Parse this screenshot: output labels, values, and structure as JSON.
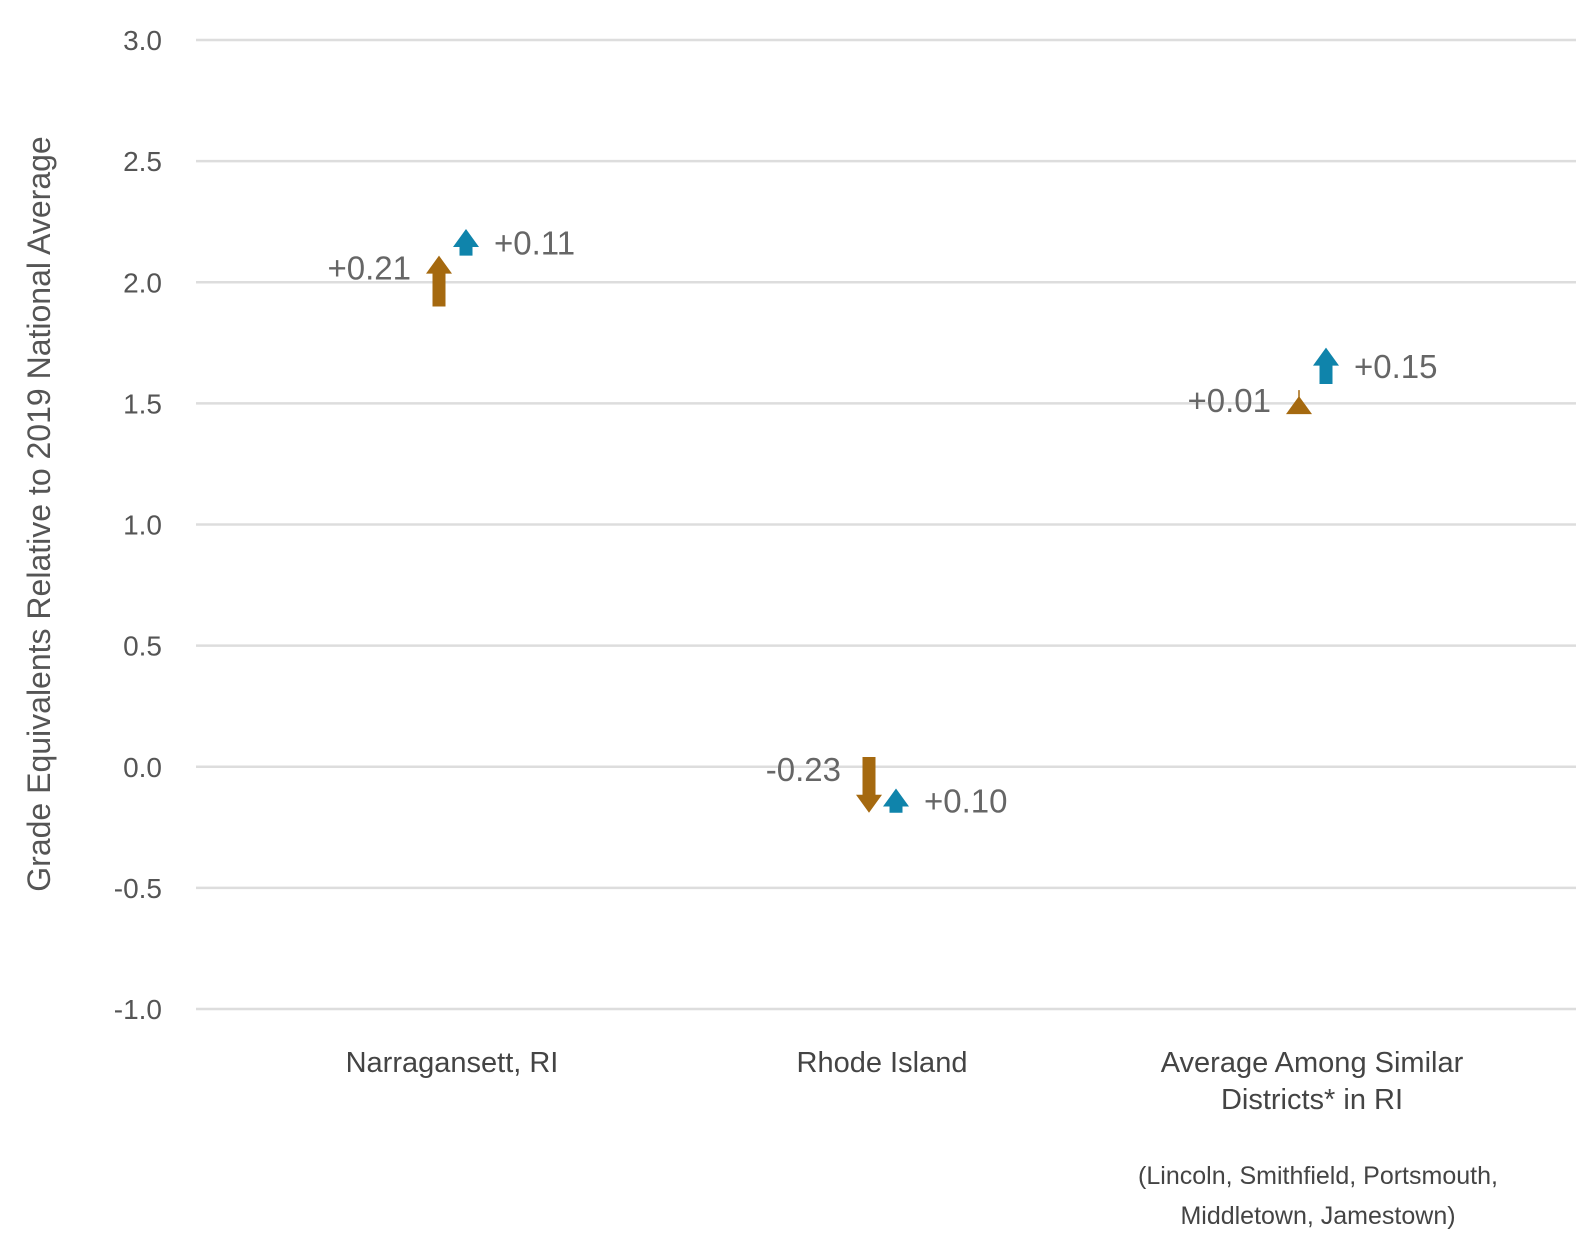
{
  "chart_data": {
    "type": "arrow",
    "ylabel": "Grade Equivalents Relative to 2019 National Average",
    "ylim": [
      -1.0,
      3.0
    ],
    "yticks": [
      3.0,
      2.5,
      2.0,
      1.5,
      1.0,
      0.5,
      0.0,
      -0.5,
      -1.0
    ],
    "ytick_labels": [
      "3.0",
      "2.5",
      "2.0",
      "1.5",
      "1.0",
      "0.5",
      "0.0",
      "-0.5",
      "-1.0"
    ],
    "grid": true,
    "categories": [
      {
        "lines": [
          "Narragansett, RI"
        ],
        "note": []
      },
      {
        "lines": [
          "Rhode Island"
        ],
        "note": []
      },
      {
        "lines": [
          "Average Among Similar",
          "Districts* in RI"
        ],
        "note": [
          "(Lincoln, Smithfield, Portsmouth,",
          "Middletown, Jamestown)"
        ]
      }
    ],
    "series": [
      {
        "color": "#a5690f",
        "points": [
          {
            "start": 1.9,
            "end": 2.11,
            "label": "+0.21"
          },
          {
            "start": 0.04,
            "end": -0.19,
            "label": "-0.23"
          },
          {
            "start": 1.52,
            "end": 1.53,
            "label": "+0.01"
          }
        ]
      },
      {
        "color": "#0f84ab",
        "points": [
          {
            "start": 2.11,
            "end": 2.22,
            "label": "+0.11"
          },
          {
            "start": -0.19,
            "end": -0.09,
            "label": "+0.10"
          },
          {
            "start": 1.58,
            "end": 1.73,
            "label": "+0.15"
          }
        ]
      }
    ]
  }
}
